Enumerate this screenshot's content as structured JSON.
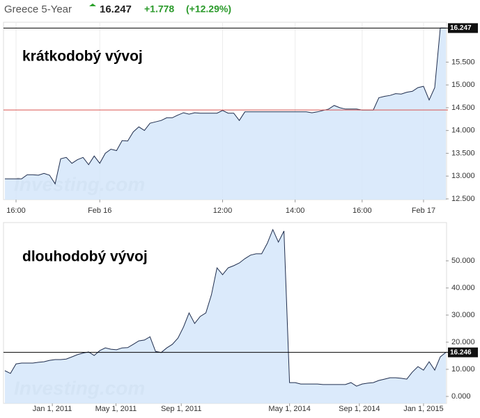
{
  "header": {
    "name": "Greece 5-Year",
    "price": "16.247",
    "change": "+1.778",
    "change_pct": "(+12.29%)"
  },
  "chart_data": [
    {
      "type": "area",
      "annotation": "krátkodobý vývoj",
      "watermark": "Investing.com",
      "color": "#1f2d4d",
      "fill_color": "#d5e6fa",
      "grid": true,
      "values": [
        12.94,
        12.94,
        12.94,
        12.94,
        13.03,
        13.03,
        13.02,
        13.06,
        13.02,
        12.83,
        13.38,
        13.41,
        13.28,
        13.36,
        13.41,
        13.25,
        13.44,
        13.28,
        13.5,
        13.59,
        13.56,
        13.78,
        13.77,
        13.97,
        14.08,
        14.0,
        14.16,
        14.19,
        14.22,
        14.28,
        14.28,
        14.34,
        14.39,
        14.36,
        14.39,
        14.38,
        14.38,
        14.38,
        14.38,
        14.44,
        14.38,
        14.38,
        14.22,
        14.41,
        14.41,
        14.41,
        14.41,
        14.41,
        14.41,
        14.41,
        14.41,
        14.41,
        14.41,
        14.41,
        14.41,
        14.39,
        14.41,
        14.44,
        14.47,
        14.55,
        14.5,
        14.47,
        14.47,
        14.47,
        14.45,
        14.45,
        14.45,
        14.72,
        14.75,
        14.77,
        14.81,
        14.8,
        14.84,
        14.86,
        14.94,
        14.97,
        14.67,
        14.94,
        16.25,
        16.247
      ],
      "xlim": [
        0,
        79
      ],
      "xticks": [
        {
          "value": 2,
          "label": "16:00"
        },
        {
          "value": 17,
          "label": "Feb 16"
        },
        {
          "value": 39,
          "label": "12:00"
        },
        {
          "value": 52,
          "label": "14:00"
        },
        {
          "value": 64,
          "label": "16:00"
        },
        {
          "value": 75,
          "label": "Feb 17"
        }
      ],
      "ylim": [
        12.484,
        16.375
      ],
      "yticks": [
        {
          "value": 12.5,
          "label": "12.500"
        },
        {
          "value": 13,
          "label": "13.000"
        },
        {
          "value": 13.5,
          "label": "13.500"
        },
        {
          "value": 14,
          "label": "14.000"
        },
        {
          "value": 14.5,
          "label": "14.500"
        },
        {
          "value": 15,
          "label": "15.000"
        },
        {
          "value": 15.5,
          "label": "15.500"
        }
      ],
      "reference_lines": [
        {
          "value": 16.247,
          "label": "16.247",
          "color": "#000000"
        },
        {
          "value": 14.45,
          "color": "#d9534f"
        }
      ]
    },
    {
      "type": "area",
      "annotation": "dlouhodobý vývoj",
      "watermark": "Investing.com",
      "color": "#1f2d4d",
      "fill_color": "#d5e6fa",
      "grid": false,
      "values": [
        9.5,
        8.5,
        12.0,
        12.3,
        12.3,
        12.3,
        12.6,
        12.8,
        13.3,
        13.6,
        13.6,
        13.8,
        14.6,
        15.4,
        16.0,
        16.4,
        15.1,
        16.9,
        17.9,
        17.4,
        17.2,
        17.9,
        18.0,
        19.2,
        20.5,
        20.8,
        22.0,
        16.6,
        16.2,
        17.9,
        19.2,
        21.5,
        25.6,
        30.8,
        26.9,
        29.5,
        30.8,
        37.5,
        47.4,
        44.9,
        47.4,
        48.2,
        49.2,
        50.8,
        52.1,
        52.6,
        52.6,
        56.4,
        61.5,
        56.9,
        61.0,
        5.1,
        5.1,
        4.6,
        4.6,
        4.6,
        4.6,
        4.4,
        4.4,
        4.4,
        4.4,
        4.4,
        5.1,
        3.8,
        4.6,
        4.9,
        5.1,
        5.9,
        6.4,
        6.9,
        6.9,
        6.7,
        6.4,
        9.0,
        11.0,
        9.7,
        12.8,
        9.7,
        14.6,
        16.246
      ],
      "xlim": [
        0,
        79
      ],
      "xticks": [
        {
          "value": 8.5,
          "label": "Jan 1, 2011"
        },
        {
          "value": 19.9,
          "label": "May 1, 2011"
        },
        {
          "value": 31.6,
          "label": "Sep 1, 2011"
        },
        {
          "value": 51,
          "label": "May 1, 2014"
        },
        {
          "value": 63.5,
          "label": "Sep 1, 2014"
        },
        {
          "value": 75,
          "label": "Jan 1, 2015"
        }
      ],
      "ylim": [
        -2.56,
        64.1
      ],
      "yticks": [
        {
          "value": 0,
          "label": "0.000"
        },
        {
          "value": 10,
          "label": "10.000"
        },
        {
          "value": 20,
          "label": "20.000"
        },
        {
          "value": 30,
          "label": "30.000"
        },
        {
          "value": 40,
          "label": "40.000"
        },
        {
          "value": 50,
          "label": "50.000"
        }
      ],
      "reference_lines": [
        {
          "value": 16.246,
          "label": "16.246",
          "color": "#000000"
        }
      ]
    }
  ]
}
